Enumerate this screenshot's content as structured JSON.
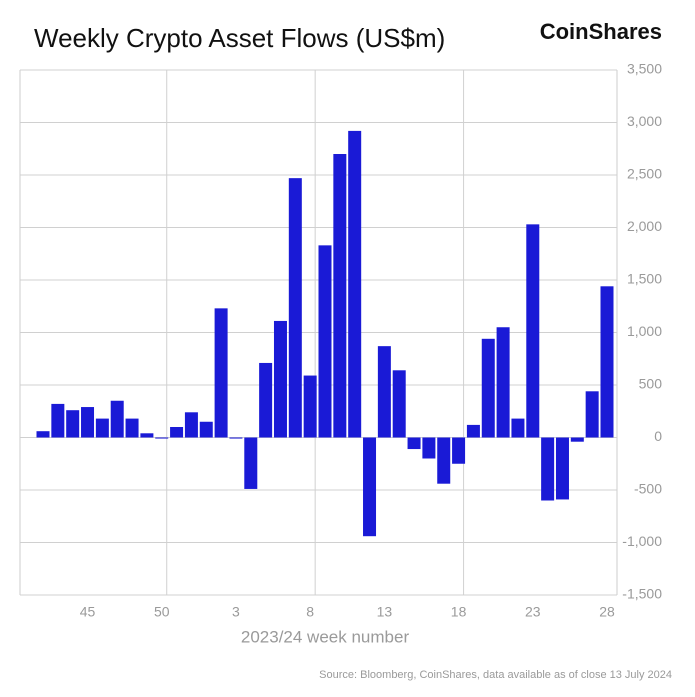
{
  "chart_data": {
    "type": "bar",
    "title": "Weekly Crypto Asset Flows (US$m)",
    "brand": "CoinShares",
    "x_label": "2023/24 week number",
    "source": "Source: Bloomberg, CoinShares, data available as of close 13 July 2024",
    "categories": [
      null,
      null,
      null,
      "45",
      null,
      null,
      null,
      null,
      "50",
      null,
      null,
      null,
      null,
      "3",
      null,
      null,
      null,
      null,
      "8",
      null,
      null,
      null,
      null,
      "13",
      null,
      null,
      null,
      null,
      "18",
      null,
      null,
      null,
      null,
      "23",
      null,
      null,
      null,
      null,
      "28"
    ],
    "values": [
      60,
      320,
      260,
      290,
      180,
      350,
      180,
      40,
      -10,
      100,
      240,
      150,
      1230,
      -10,
      -490,
      710,
      1110,
      2470,
      590,
      1830,
      2700,
      2920,
      -940,
      870,
      640,
      -110,
      -200,
      -440,
      -250,
      120,
      940,
      1050,
      180,
      2030,
      -600,
      -590,
      -40,
      440,
      1440
    ],
    "color": "#1a1ad6",
    "ylim": [
      -1500,
      3500
    ],
    "yticks": [
      {
        "value": -1500,
        "label": "-1,500"
      },
      {
        "value": -1000,
        "label": "-1,000"
      },
      -500,
      0,
      500,
      {
        "value": 1000,
        "label": "1,000"
      },
      {
        "value": 1500,
        "label": "1,500"
      },
      {
        "value": 2000,
        "label": "2,000"
      },
      {
        "value": 2500,
        "label": "2,500"
      },
      {
        "value": 3000,
        "label": "3,000"
      },
      {
        "value": 3500,
        "label": "3,500"
      }
    ],
    "grid": true
  }
}
